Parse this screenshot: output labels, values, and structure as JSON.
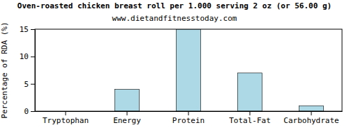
{
  "chart_data": {
    "type": "bar",
    "title": "Oven-roasted chicken breast roll per 1.000 serving 2 oz (or 56.00 g)",
    "subtitle": "www.dietandfitnesstoday.com",
    "y_label": "Percentage of RDA (%)",
    "categories": [
      "Tryptophan",
      "Energy",
      "Protein",
      "Total-Fat",
      "Carbohydrate"
    ],
    "values": [
      0,
      4,
      15,
      7,
      1
    ],
    "color": "#add8e6",
    "ylim": [
      0,
      15
    ],
    "yticks": [
      0,
      5,
      10,
      15
    ],
    "grid": false
  }
}
